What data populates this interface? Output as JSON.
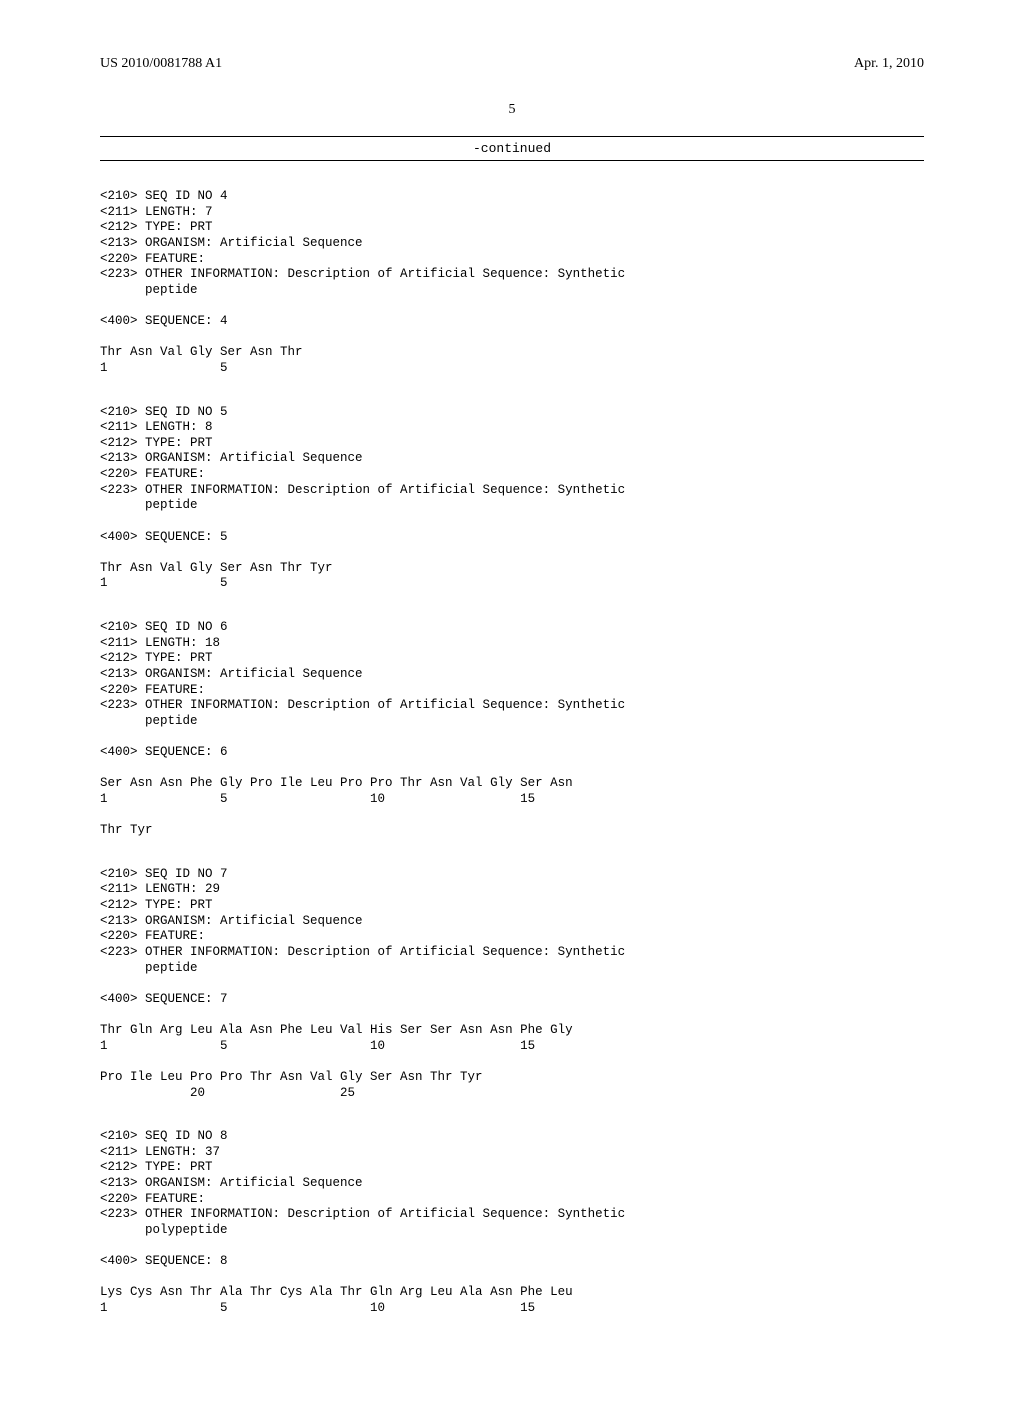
{
  "header": {
    "left": "US 2010/0081788 A1",
    "right": "Apr. 1, 2010"
  },
  "page_number": "5",
  "continued_label": "-continued",
  "sequences": [
    {
      "header": [
        "<210> SEQ ID NO 4",
        "<211> LENGTH: 7",
        "<212> TYPE: PRT",
        "<213> ORGANISM: Artificial Sequence",
        "<220> FEATURE:",
        "<223> OTHER INFORMATION: Description of Artificial Sequence: Synthetic",
        "      peptide",
        "",
        "<400> SEQUENCE: 4"
      ],
      "body": [
        "Thr Asn Val Gly Ser Asn Thr",
        "1               5"
      ]
    },
    {
      "header": [
        "<210> SEQ ID NO 5",
        "<211> LENGTH: 8",
        "<212> TYPE: PRT",
        "<213> ORGANISM: Artificial Sequence",
        "<220> FEATURE:",
        "<223> OTHER INFORMATION: Description of Artificial Sequence: Synthetic",
        "      peptide",
        "",
        "<400> SEQUENCE: 5"
      ],
      "body": [
        "Thr Asn Val Gly Ser Asn Thr Tyr",
        "1               5"
      ]
    },
    {
      "header": [
        "<210> SEQ ID NO 6",
        "<211> LENGTH: 18",
        "<212> TYPE: PRT",
        "<213> ORGANISM: Artificial Sequence",
        "<220> FEATURE:",
        "<223> OTHER INFORMATION: Description of Artificial Sequence: Synthetic",
        "      peptide",
        "",
        "<400> SEQUENCE: 6"
      ],
      "body": [
        "Ser Asn Asn Phe Gly Pro Ile Leu Pro Pro Thr Asn Val Gly Ser Asn",
        "1               5                   10                  15",
        "",
        "Thr Tyr"
      ]
    },
    {
      "header": [
        "<210> SEQ ID NO 7",
        "<211> LENGTH: 29",
        "<212> TYPE: PRT",
        "<213> ORGANISM: Artificial Sequence",
        "<220> FEATURE:",
        "<223> OTHER INFORMATION: Description of Artificial Sequence: Synthetic",
        "      peptide",
        "",
        "<400> SEQUENCE: 7"
      ],
      "body": [
        "Thr Gln Arg Leu Ala Asn Phe Leu Val His Ser Ser Asn Asn Phe Gly",
        "1               5                   10                  15",
        "",
        "Pro Ile Leu Pro Pro Thr Asn Val Gly Ser Asn Thr Tyr",
        "            20                  25"
      ]
    },
    {
      "header": [
        "<210> SEQ ID NO 8",
        "<211> LENGTH: 37",
        "<212> TYPE: PRT",
        "<213> ORGANISM: Artificial Sequence",
        "<220> FEATURE:",
        "<223> OTHER INFORMATION: Description of Artificial Sequence: Synthetic",
        "      polypeptide",
        "",
        "<400> SEQUENCE: 8"
      ],
      "body": [
        "Lys Cys Asn Thr Ala Thr Cys Ala Thr Gln Arg Leu Ala Asn Phe Leu",
        "1               5                   10                  15"
      ]
    }
  ]
}
